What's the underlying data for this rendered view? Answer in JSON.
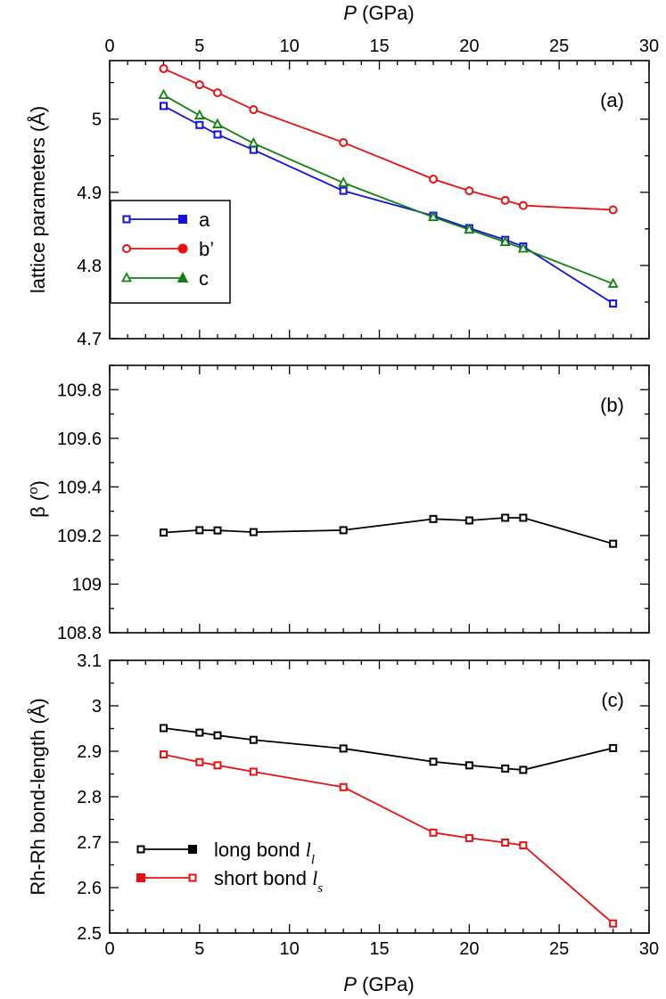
{
  "figure": {
    "top_axis_title_var": "P",
    "top_axis_title_unit": " (GPa)",
    "bottom_axis_title_var": "P",
    "bottom_axis_title_unit": " (GPa)"
  },
  "chart_data": [
    {
      "type": "line",
      "panel": "a",
      "panel_label": "(a)",
      "ylabel": "lattice parameters (Å)",
      "xlabel": "P (GPa)",
      "xlim": [
        0,
        30
      ],
      "ylim": [
        4.7,
        5.08
      ],
      "xticks": [
        0,
        5,
        10,
        15,
        20,
        25,
        30
      ],
      "yticks": [
        4.7,
        4.8,
        4.9,
        5.0
      ],
      "ytick_labels": [
        "4.7",
        "4.8",
        "4.9",
        "5"
      ],
      "legend_position": "middle-left",
      "series": [
        {
          "name": "a",
          "color": "#1010e0",
          "marker": "square",
          "x": [
            3,
            5,
            6,
            8,
            13,
            18,
            20,
            22,
            23,
            28
          ],
          "y": [
            5.018,
            4.992,
            4.979,
            4.958,
            4.902,
            4.868,
            4.851,
            4.835,
            4.826,
            4.748
          ]
        },
        {
          "name": "b’",
          "color": "#e81010",
          "marker": "circle",
          "x": [
            3,
            5,
            6,
            8,
            13,
            18,
            20,
            22,
            23,
            28
          ],
          "y": [
            5.069,
            5.047,
            5.036,
            5.013,
            4.968,
            4.918,
            4.902,
            4.889,
            4.882,
            4.876
          ]
        },
        {
          "name": "c",
          "color": "#108010",
          "marker": "triangle",
          "x": [
            3,
            5,
            6,
            8,
            13,
            18,
            20,
            22,
            23,
            28
          ],
          "y": [
            5.033,
            5.005,
            4.993,
            4.967,
            4.913,
            4.866,
            4.849,
            4.832,
            4.823,
            4.775
          ]
        }
      ]
    },
    {
      "type": "line",
      "panel": "b",
      "panel_label": "(b)",
      "ylabel": "β (°)",
      "ylabel_symbol": "β",
      "ylabel_unit_open": " (",
      "ylabel_unit_sup": "o",
      "ylabel_unit_close": ")",
      "xlim": [
        0,
        30
      ],
      "ylim": [
        108.8,
        109.9
      ],
      "xticks": [
        0,
        5,
        10,
        15,
        20,
        25,
        30
      ],
      "yticks": [
        108.8,
        109.0,
        109.2,
        109.4,
        109.6,
        109.8
      ],
      "ytick_labels": [
        "108.8",
        "109",
        "109.2",
        "109.4",
        "109.6",
        "109.8"
      ],
      "series": [
        {
          "name": "β",
          "color": "#000000",
          "marker": "square",
          "x": [
            3,
            5,
            6,
            8,
            13,
            18,
            20,
            22,
            23,
            28
          ],
          "y": [
            109.212,
            109.222,
            109.221,
            109.214,
            109.222,
            109.268,
            109.262,
            109.273,
            109.273,
            109.166
          ]
        }
      ]
    },
    {
      "type": "line",
      "panel": "c",
      "panel_label": "(c)",
      "ylabel": "Rh-Rh bond-length (Å)",
      "xlabel": "P (GPa)",
      "xlim": [
        0,
        30
      ],
      "ylim": [
        2.5,
        3.1
      ],
      "xticks": [
        0,
        5,
        10,
        15,
        20,
        25,
        30
      ],
      "yticks": [
        2.5,
        2.6,
        2.7,
        2.8,
        2.9,
        3.0,
        3.1
      ],
      "ytick_labels": [
        "2.5",
        "2.6",
        "2.7",
        "2.8",
        "2.9",
        "3",
        "3.1"
      ],
      "legend_position": "bottom-left",
      "series": [
        {
          "name": "long bond",
          "sym": "l",
          "sub": "l",
          "color": "#000000",
          "marker": "square",
          "x": [
            3,
            5,
            6,
            8,
            13,
            18,
            20,
            22,
            23,
            28
          ],
          "y": [
            2.951,
            2.941,
            2.935,
            2.925,
            2.906,
            2.877,
            2.869,
            2.862,
            2.859,
            2.907
          ]
        },
        {
          "name": "short bond",
          "sym": "l",
          "sub": "s",
          "color": "#e81010",
          "marker": "square",
          "x": [
            3,
            5,
            6,
            8,
            13,
            18,
            20,
            22,
            23,
            28
          ],
          "y": [
            2.893,
            2.876,
            2.869,
            2.855,
            2.821,
            2.721,
            2.709,
            2.699,
            2.693,
            2.521
          ]
        }
      ]
    }
  ]
}
